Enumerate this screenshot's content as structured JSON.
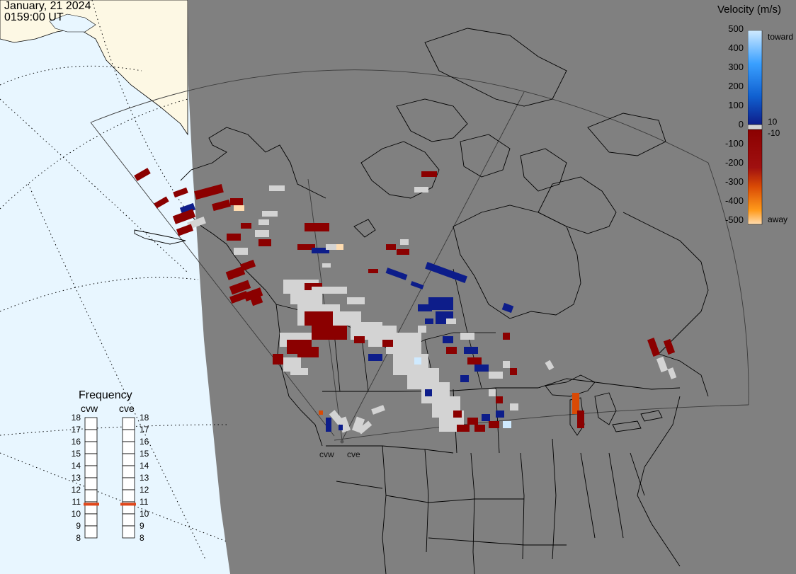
{
  "header": {
    "date": "January, 21 2024",
    "time": "0159:00 UT"
  },
  "colorbar": {
    "title": "Velocity (m/s)",
    "ticks": [
      "500",
      "400",
      "300",
      "200",
      "100",
      "10",
      "0",
      "-10",
      "-100",
      "-200",
      "-300",
      "-400",
      "-500"
    ],
    "toward_label": "toward",
    "away_label": "away",
    "colors": {
      "toward_light": "#cfeaff",
      "toward_mid": "#3aa0ff",
      "toward_dark": "#0d1d8a",
      "away_dark": "#8b0000",
      "away_mid": "#d94a05",
      "away_light": "#ff9a1a",
      "away_pale": "#ffdcb0",
      "ground_scatter": "#d3d3d3"
    }
  },
  "frequency_panel": {
    "title": "Frequency",
    "radars": [
      {
        "name": "cvw",
        "frequency_mhz": 10.8
      },
      {
        "name": "cve",
        "frequency_mhz": 10.8
      }
    ],
    "ticks": [
      "18",
      "17",
      "16",
      "15",
      "14",
      "13",
      "12",
      "11",
      "10",
      "9",
      "8"
    ]
  },
  "map": {
    "radar_sites": [
      "cvw",
      "cve"
    ],
    "colors": {
      "night": "#808080",
      "ocean_day": "#e8f6ff",
      "land_day": "#fdf8e4",
      "coastline": "#000000"
    }
  }
}
